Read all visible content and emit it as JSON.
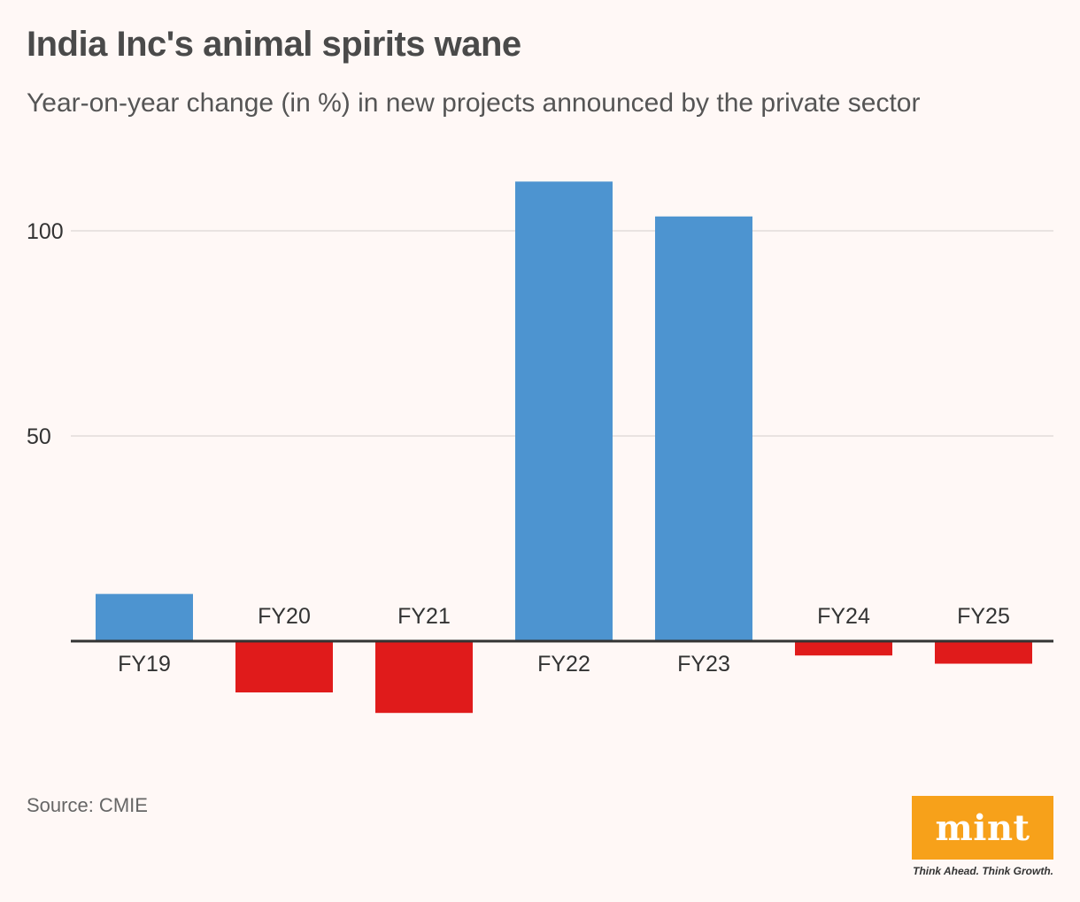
{
  "chart_data": {
    "type": "bar",
    "title": "India Inc's animal spirits wane",
    "subtitle": "Year-on-year change (in %) in new projects announced by the private sector",
    "categories": [
      "FY19",
      "FY20",
      "FY21",
      "FY22",
      "FY23",
      "FY24",
      "FY25"
    ],
    "values": [
      11.5,
      -12.5,
      -17.5,
      112,
      103.5,
      -3.5,
      -5.5
    ],
    "yticks": [
      50,
      100
    ],
    "ylim": [
      -30,
      130
    ],
    "grid": true,
    "colors": {
      "positive": "#4d94d0",
      "negative": "#e01b1b",
      "grid": "#e2dcda",
      "baseline": "#333333"
    },
    "xlabel": "",
    "ylabel": ""
  },
  "footer": {
    "source": "Source: CMIE",
    "brand": "mint",
    "tagline": "Think Ahead. Think Growth."
  }
}
